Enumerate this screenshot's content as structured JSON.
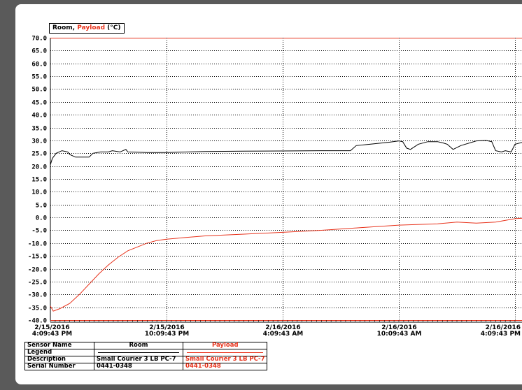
{
  "legend": {
    "prefix": "Room, ",
    "payload": "Payload",
    "unit": " (°C)"
  },
  "colors": {
    "room": "#000000",
    "payload": "#e8331c",
    "grid": "#000000"
  },
  "info_table": {
    "rows": [
      {
        "label": "Sensor Name",
        "room": "Room",
        "payload": "Payload"
      },
      {
        "label": "Legend",
        "room": "",
        "payload": ""
      },
      {
        "label": "Description",
        "room": "Small Courier 3 LB PC-7",
        "payload": "Small Courier 3 LB PC-7"
      },
      {
        "label": "Serial Number",
        "room": "0441-0348",
        "payload": "0441-0348"
      }
    ]
  },
  "chart_data": {
    "type": "line",
    "ylabel": "Room, Payload (°C)",
    "ylim": [
      -40,
      70
    ],
    "yticks": [
      "70.0",
      "65.0",
      "60.0",
      "55.0",
      "50.0",
      "45.0",
      "40.0",
      "35.0",
      "30.0",
      "25.0",
      "20.0",
      "15.0",
      "10.0",
      "5.0",
      "0.0",
      "-5.0",
      "-10.0",
      "-15.0",
      "-20.0",
      "-25.0",
      "-30.0",
      "-35.0",
      "-40.0"
    ],
    "xlim": [
      0,
      24
    ],
    "xticks": [
      {
        "x": 0,
        "date": "2/15/2016",
        "time": "4:09:43 PM"
      },
      {
        "x": 6,
        "date": "2/15/2016",
        "time": "10:09:43 PM"
      },
      {
        "x": 12,
        "date": "2/16/2016",
        "time": "4:09:43 AM"
      },
      {
        "x": 18,
        "date": "2/16/2016",
        "time": "10:09:43 AM"
      },
      {
        "x": 24,
        "date": "2/16/2016",
        "time": "4:09:43 PM"
      }
    ],
    "grid": true,
    "series": [
      {
        "name": "Room",
        "color": "#000000",
        "points": [
          [
            0,
            20.5
          ],
          [
            0.1,
            23
          ],
          [
            0.3,
            25
          ],
          [
            0.6,
            26
          ],
          [
            0.9,
            25.5
          ],
          [
            1,
            24.5
          ],
          [
            1.3,
            23.5
          ],
          [
            1.7,
            23.5
          ],
          [
            2,
            23.5
          ],
          [
            2.2,
            25
          ],
          [
            2.6,
            25.5
          ],
          [
            3,
            25.5
          ],
          [
            3.2,
            26
          ],
          [
            3.6,
            25.5
          ],
          [
            3.9,
            26.5
          ],
          [
            4,
            25.5
          ],
          [
            5,
            25.3
          ],
          [
            6,
            25.3
          ],
          [
            8,
            25.7
          ],
          [
            10,
            25.8
          ],
          [
            12,
            25.9
          ],
          [
            14,
            26
          ],
          [
            15.5,
            26
          ],
          [
            15.8,
            28
          ],
          [
            16.5,
            28.5
          ],
          [
            17.5,
            29.3
          ],
          [
            18,
            29.8
          ],
          [
            18.2,
            29.5
          ],
          [
            18.4,
            27
          ],
          [
            18.6,
            26.5
          ],
          [
            19,
            28.5
          ],
          [
            19.5,
            29.5
          ],
          [
            20,
            29.5
          ],
          [
            20.3,
            29
          ],
          [
            20.5,
            28.5
          ],
          [
            20.8,
            26.5
          ],
          [
            21.2,
            28
          ],
          [
            22,
            29.8
          ],
          [
            22.5,
            30
          ],
          [
            22.8,
            29.5
          ],
          [
            23,
            26
          ],
          [
            23.3,
            25.5
          ],
          [
            23.5,
            26
          ],
          [
            23.8,
            25.5
          ],
          [
            24,
            28.5
          ],
          [
            24.5,
            29.5
          ],
          [
            25,
            30
          ]
        ]
      },
      {
        "name": "Payload",
        "color": "#e8331c",
        "points": [
          [
            0,
            -34.5
          ],
          [
            0.15,
            -36.5
          ],
          [
            0.5,
            -35.5
          ],
          [
            1,
            -33.5
          ],
          [
            1.5,
            -30
          ],
          [
            2,
            -26
          ],
          [
            2.5,
            -22
          ],
          [
            3,
            -18.5
          ],
          [
            3.5,
            -15.5
          ],
          [
            4,
            -13
          ],
          [
            4.5,
            -11.5
          ],
          [
            5,
            -10
          ],
          [
            5.5,
            -9
          ],
          [
            6,
            -8.5
          ],
          [
            7,
            -7.8
          ],
          [
            8,
            -7.2
          ],
          [
            10,
            -6.5
          ],
          [
            12,
            -5.8
          ],
          [
            14,
            -5
          ],
          [
            16,
            -4
          ],
          [
            18,
            -3
          ],
          [
            20,
            -2.5
          ],
          [
            21,
            -1.8
          ],
          [
            22,
            -2.2
          ],
          [
            23,
            -1.8
          ],
          [
            24,
            -0.5
          ],
          [
            25,
            0
          ]
        ]
      }
    ]
  }
}
